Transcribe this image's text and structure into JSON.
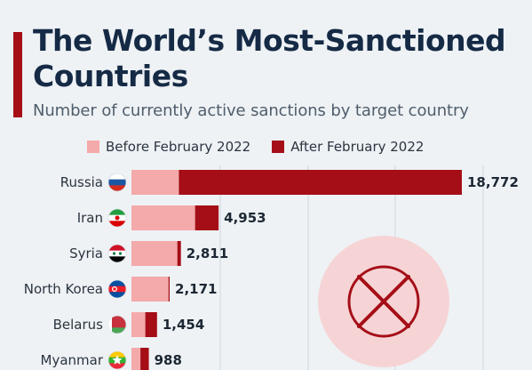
{
  "header": {
    "title": "The World’s Most-Sanctioned Countries",
    "subtitle": "Number of currently active sanctions by target country"
  },
  "legend": {
    "before_label": "Before February 2022",
    "after_label": "After February 2022"
  },
  "colors": {
    "before": "#f4a9aa",
    "after": "#a50e17",
    "accent": "#a50e17",
    "title": "#152a45",
    "gridline": "#cfd6dd",
    "icon_circle": "#f6d4d5",
    "icon_x": "#a50e17"
  },
  "icon": "prohibition-x-icon",
  "chart_data": {
    "type": "bar",
    "orientation": "horizontal",
    "stacked": true,
    "title": "The World’s Most-Sanctioned Countries",
    "subtitle": "Number of currently active sanctions by target country",
    "categories": [
      "Russia",
      "Iran",
      "Syria",
      "North Korea",
      "Belarus",
      "Myanmar"
    ],
    "flags": [
      "russia-flag-icon",
      "iran-flag-icon",
      "syria-flag-icon",
      "north-korea-flag-icon",
      "belarus-flag-icon",
      "myanmar-flag-icon"
    ],
    "totals": [
      "18,772",
      "4,953",
      "2,811",
      "2,171",
      "1,454",
      "988"
    ],
    "series": [
      {
        "name": "Before February 2022",
        "values": [
          2695,
          3616,
          2608,
          2105,
          788,
          510
        ]
      },
      {
        "name": "After February 2022",
        "values": [
          16077,
          1337,
          203,
          66,
          666,
          478
        ]
      }
    ],
    "xlim": [
      0,
      18772
    ],
    "grid": true,
    "legend_position": "top"
  }
}
